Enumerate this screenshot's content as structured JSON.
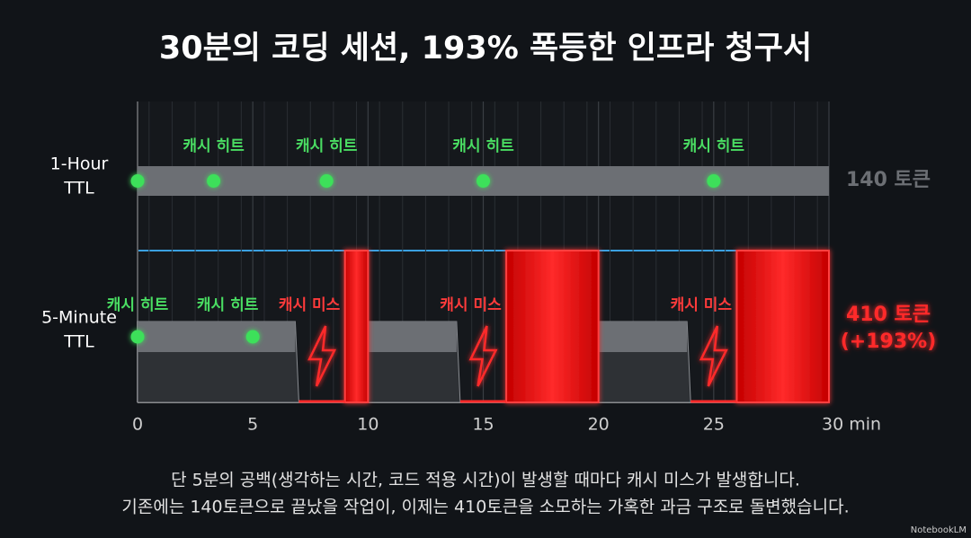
{
  "chart_data": {
    "type": "timeline",
    "title": "30분의 코딩 세션, 193% 폭등한 인프라 청구서",
    "xlim": [
      0,
      30
    ],
    "xticks": [
      0,
      5,
      10,
      15,
      20,
      25,
      {
        "value": 30,
        "label": "30 min"
      }
    ],
    "rows": [
      {
        "label": [
          "1-Hour",
          "TTL"
        ],
        "total": [
          "140 토큰"
        ],
        "color": "#6c6f74",
        "cached": [
          [
            0,
            30
          ]
        ],
        "recompute": [],
        "hits": [
          {
            "x": 0,
            "label": null
          },
          {
            "x": 3.3,
            "label": "캐시 히트"
          },
          {
            "x": 8.2,
            "label": "캐시 히트"
          },
          {
            "x": 15,
            "label": "캐시 히트"
          },
          {
            "x": 25,
            "label": "캐시 히트"
          }
        ],
        "misses": []
      },
      {
        "label": [
          "5-Minute",
          "TTL"
        ],
        "total": [
          "410 토큰",
          "(+193%)"
        ],
        "color": "#ff2a2a",
        "cached": [
          [
            0,
            7
          ],
          [
            10,
            14
          ],
          [
            20,
            24
          ]
        ],
        "recompute": [
          [
            9,
            10
          ],
          [
            16,
            20
          ],
          [
            26,
            30
          ]
        ],
        "hits": [
          {
            "x": 0,
            "label": "캐시 히트"
          },
          {
            "x": 5,
            "label": "캐시 히트"
          }
        ],
        "misses": [
          {
            "x": 8,
            "label": "캐시 미스"
          },
          {
            "x": 15,
            "label": "캐시 미스"
          },
          {
            "x": 25,
            "label": "캐시 미스"
          }
        ]
      }
    ],
    "caption": [
      "단 5분의 공백(생각하는 시간, 코드 적용 시간)이 발생할 때마다 캐시 미스가 발생합니다.",
      "기존에는 140토큰으로 끝났을 작업이, 이제는 410토큰을 소모하는 가혹한 과금 구조로 돌변했습니다."
    ],
    "watermark": "NotebookLM"
  }
}
